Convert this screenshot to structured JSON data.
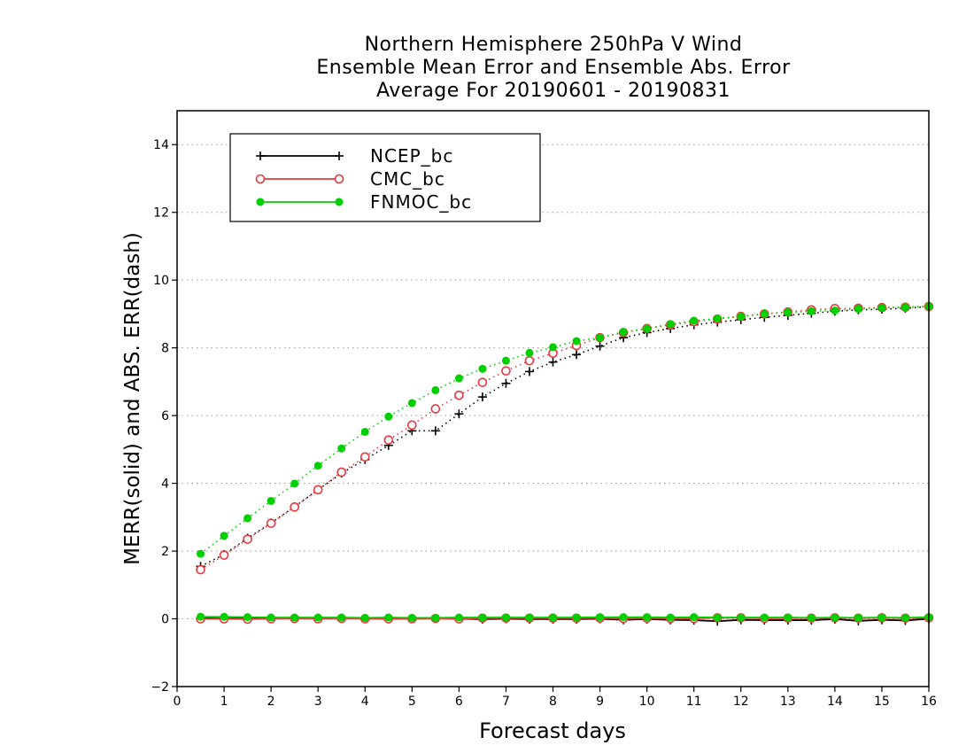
{
  "chart_data": {
    "type": "line",
    "title": [
      "Northern Hemisphere 250hPa V Wind",
      "Ensemble Mean Error and Ensemble Abs. Error",
      "Average For 20190601 - 20190831"
    ],
    "xlabel": "Forecast days",
    "ylabel": "MERR(solid) and ABS. ERR(dash)",
    "xlim": [
      0,
      16
    ],
    "ylim": [
      -2,
      15
    ],
    "xticks": [
      0,
      1,
      2,
      3,
      4,
      5,
      6,
      7,
      8,
      9,
      10,
      11,
      12,
      13,
      14,
      15,
      16
    ],
    "yticks": [
      -2,
      0,
      2,
      4,
      6,
      8,
      10,
      12,
      14
    ],
    "grid": true,
    "legend_position": "top-left",
    "x": [
      0.5,
      1,
      1.5,
      2,
      2.5,
      3,
      3.5,
      4,
      4.5,
      5,
      5.5,
      6,
      6.5,
      7,
      7.5,
      8,
      8.5,
      9,
      9.5,
      10,
      10.5,
      11,
      11.5,
      12,
      12.5,
      13,
      13.5,
      14,
      14.5,
      15,
      15.5,
      16
    ],
    "series": [
      {
        "name": "NCEP_bc",
        "color": "#000000",
        "marker": "plus",
        "merr": [
          0.02,
          0.01,
          0.02,
          0.01,
          0.01,
          0.01,
          0.01,
          0.01,
          0.0,
          0.0,
          0.01,
          0.0,
          -0.01,
          0.0,
          -0.01,
          -0.01,
          -0.01,
          0.0,
          -0.03,
          -0.01,
          -0.03,
          -0.04,
          -0.07,
          -0.03,
          -0.04,
          -0.04,
          -0.04,
          -0.01,
          -0.06,
          -0.03,
          -0.05,
          0.0
        ],
        "abs_err": [
          1.55,
          1.9,
          2.38,
          2.83,
          3.31,
          3.81,
          4.3,
          4.7,
          5.12,
          5.55,
          5.55,
          6.05,
          6.55,
          6.95,
          7.3,
          7.58,
          7.8,
          8.05,
          8.3,
          8.45,
          8.57,
          8.68,
          8.76,
          8.83,
          8.9,
          8.96,
          9.02,
          9.08,
          9.12,
          9.14,
          9.17,
          9.22
        ]
      },
      {
        "name": "CMC_bc",
        "color": "#e8383d",
        "marker": "circle-open",
        "merr": [
          0.0,
          0.0,
          -0.01,
          0.0,
          0.01,
          0.0,
          0.01,
          0.0,
          0.0,
          0.0,
          0.01,
          0.0,
          0.02,
          0.02,
          0.02,
          0.02,
          0.02,
          0.02,
          0.01,
          0.02,
          0.01,
          0.01,
          0.03,
          0.03,
          0.01,
          0.02,
          0.02,
          0.03,
          0.02,
          0.03,
          0.02,
          0.03
        ],
        "abs_err": [
          1.45,
          1.88,
          2.35,
          2.82,
          3.3,
          3.81,
          4.33,
          4.78,
          5.28,
          5.72,
          6.2,
          6.6,
          6.98,
          7.32,
          7.62,
          7.84,
          8.07,
          8.3,
          8.45,
          8.57,
          8.68,
          8.77,
          8.85,
          8.93,
          9.0,
          9.06,
          9.12,
          9.16,
          9.17,
          9.19,
          9.2,
          9.22
        ]
      },
      {
        "name": "FNMOC_bc",
        "color": "#00d000",
        "marker": "circle-filled",
        "merr": [
          0.06,
          0.06,
          0.05,
          0.04,
          0.04,
          0.04,
          0.04,
          0.03,
          0.04,
          0.03,
          0.03,
          0.04,
          0.04,
          0.04,
          0.04,
          0.04,
          0.04,
          0.05,
          0.05,
          0.05,
          0.04,
          0.05,
          0.04,
          0.04,
          0.04,
          0.04,
          0.03,
          0.04,
          0.03,
          0.04,
          0.03,
          0.05
        ],
        "abs_err": [
          1.92,
          2.45,
          2.97,
          3.48,
          3.99,
          4.52,
          5.03,
          5.52,
          5.97,
          6.37,
          6.75,
          7.1,
          7.38,
          7.62,
          7.85,
          8.02,
          8.2,
          8.3,
          8.47,
          8.57,
          8.7,
          8.8,
          8.87,
          8.93,
          9.0,
          9.05,
          9.08,
          9.1,
          9.15,
          9.18,
          9.2,
          9.22
        ]
      }
    ]
  }
}
